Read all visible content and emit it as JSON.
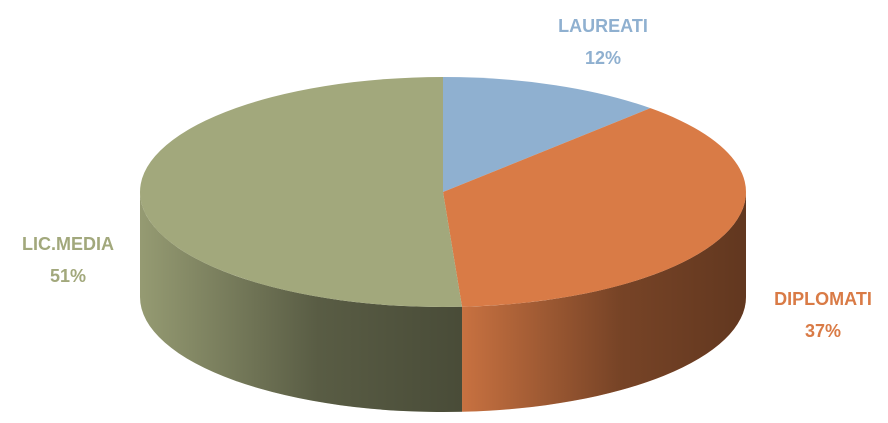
{
  "chart_data": {
    "type": "pie",
    "categories": [
      "LAUREATI",
      "DIPLOMATI",
      "LIC.MEDIA"
    ],
    "values": [
      12,
      37,
      51
    ],
    "value_labels": [
      "12%",
      "37%",
      "51%"
    ],
    "colors": [
      "#8fb0d0",
      "#d97b46",
      "#a2a87c"
    ]
  }
}
